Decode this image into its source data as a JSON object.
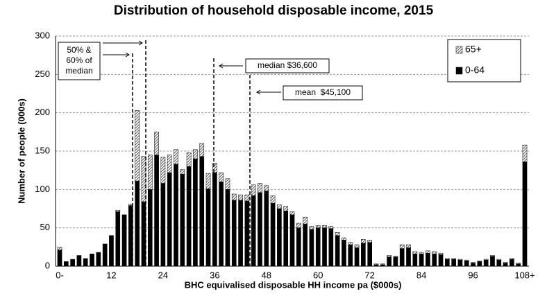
{
  "chart_data": {
    "type": "stacked-bar",
    "title": "Distribution of household disposable income, 2015",
    "x_label": "BHC equivalised disposable HH income pa ($000s)",
    "y_label": "Number of people (000s)",
    "categories": [
      "0-",
      null,
      null,
      null,
      null,
      null,
      null,
      null,
      "12",
      null,
      null,
      null,
      null,
      null,
      null,
      null,
      "24",
      null,
      null,
      null,
      null,
      null,
      null,
      null,
      "36",
      null,
      null,
      null,
      null,
      null,
      null,
      null,
      "48",
      null,
      null,
      null,
      null,
      null,
      null,
      null,
      "60",
      null,
      null,
      null,
      null,
      null,
      null,
      null,
      "72",
      null,
      null,
      null,
      null,
      null,
      null,
      null,
      "84",
      null,
      null,
      null,
      null,
      null,
      null,
      null,
      "96",
      null,
      null,
      null,
      null,
      null,
      null,
      null,
      "108+"
    ],
    "series": [
      {
        "name": "0-64",
        "color": "#000000",
        "pattern": "solid",
        "values": [
          21,
          6,
          9,
          14,
          10,
          16,
          18,
          29,
          40,
          71,
          67,
          79,
          111,
          84,
          100,
          145,
          108,
          122,
          133,
          120,
          130,
          140,
          143,
          101,
          122,
          110,
          100,
          86,
          86,
          85,
          92,
          96,
          98,
          82,
          75,
          72,
          67,
          50,
          55,
          48,
          50,
          50,
          49,
          40,
          34,
          28,
          24,
          30,
          31,
          2,
          2,
          12,
          12,
          23,
          24,
          16,
          16,
          17,
          16,
          15,
          9,
          9,
          8,
          7,
          4,
          6,
          8,
          13,
          8,
          4,
          9,
          3,
          136
        ]
      },
      {
        "name": "65+",
        "color": "#555555",
        "pattern": "hatch",
        "values": [
          4,
          0,
          0,
          0,
          0,
          0,
          0,
          0,
          0,
          2,
          0,
          2,
          92,
          59,
          45,
          30,
          34,
          23,
          19,
          6,
          18,
          12,
          17,
          20,
          12,
          12,
          14,
          8,
          7,
          8,
          14,
          12,
          7,
          10,
          5,
          6,
          4,
          6,
          9,
          4,
          3,
          3,
          3,
          4,
          3,
          3,
          4,
          5,
          3,
          1,
          1,
          2,
          1,
          5,
          4,
          3,
          2,
          3,
          3,
          2,
          1,
          1,
          1,
          1,
          1,
          1,
          1,
          1,
          1,
          1,
          1,
          1,
          22
        ]
      }
    ],
    "ylim": [
      0,
      300
    ],
    "yticks": [
      0,
      50,
      100,
      150,
      200,
      250,
      300
    ],
    "grid": true,
    "legend": "top-right",
    "annotations": {
      "thresholds": [
        "50% &",
        "60% of",
        "median"
      ],
      "median": "median $36,600",
      "mean": "mean  $45,100"
    }
  }
}
